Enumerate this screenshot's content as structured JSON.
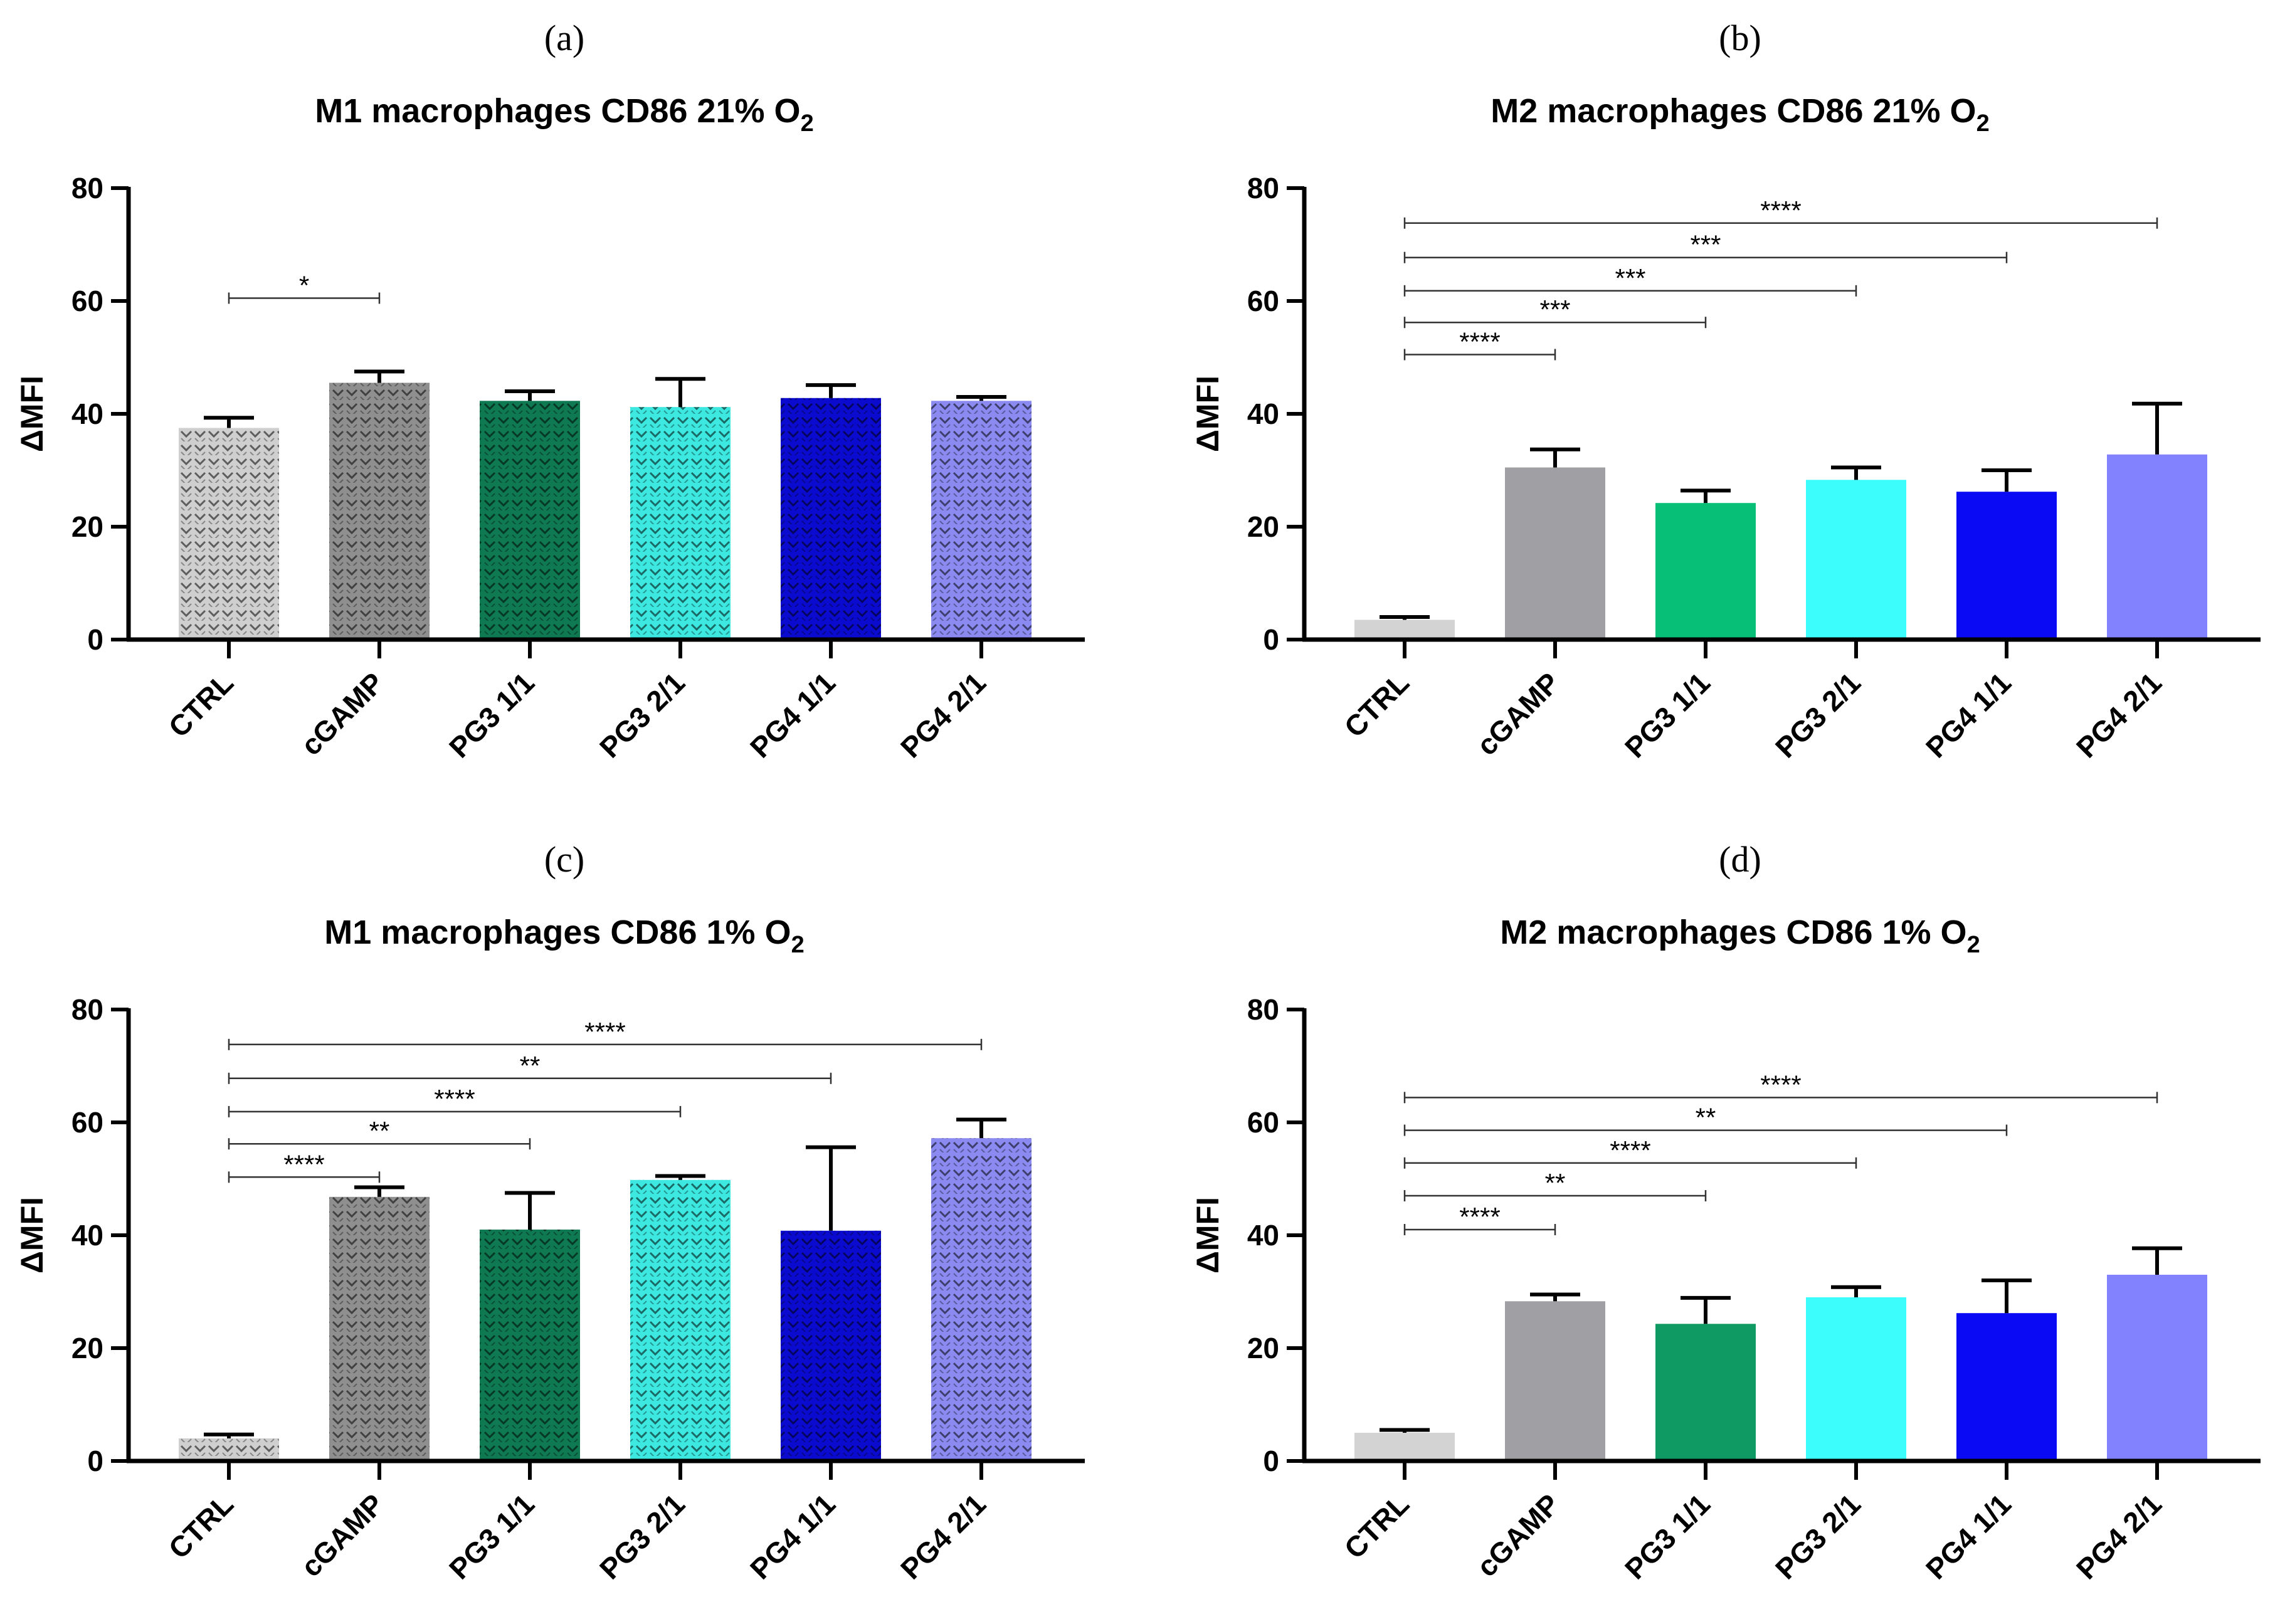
{
  "chart_data": [
    {
      "type": "bar",
      "panel_label": "(a)",
      "title_main": "M1 macrophages CD86 21% O",
      "title_sub": "2",
      "ylabel": "ΔMFI",
      "ylim": [
        0,
        80
      ],
      "yticks": [
        "0",
        "20",
        "40",
        "60",
        "80"
      ],
      "categories": [
        "CTRL",
        "cGAMP",
        "PG3 1/1",
        "PG3 2/1",
        "PG4 1/1",
        "PG4 2/1"
      ],
      "values": [
        37.5,
        45.5,
        42.3,
        41.2,
        42.8,
        42.3
      ],
      "errors": [
        1.8,
        2.0,
        1.7,
        5.0,
        2.3,
        0.7
      ],
      "colors": [
        "#cfcfcf",
        "#8f8f8f",
        "#0f7a52",
        "#3ce8e0",
        "#0b0bd0",
        "#8a8af0"
      ],
      "textured": true,
      "significance": [
        {
          "from": 0,
          "to": 1,
          "y": 60.5,
          "label": "*"
        }
      ]
    },
    {
      "type": "bar",
      "panel_label": "(b)",
      "title_main": "M2 macrophages CD86 21% O",
      "title_sub": "2",
      "ylabel": "ΔMFI",
      "ylim": [
        0,
        80
      ],
      "yticks": [
        "0",
        "20",
        "40",
        "60",
        "80"
      ],
      "categories": [
        "CTRL",
        "cGAMP",
        "PG3 1/1",
        "PG3 2/1",
        "PG4 1/1",
        "PG4 2/1"
      ],
      "values": [
        3.5,
        30.5,
        24.2,
        28.3,
        26.2,
        32.8
      ],
      "errors": [
        0.5,
        3.2,
        2.2,
        2.2,
        3.8,
        9.0
      ],
      "colors": [
        "#d3d3d3",
        "#a0a0a4",
        "#07bf76",
        "#3cfcfc",
        "#0a0af5",
        "#8282ff"
      ],
      "textured": false,
      "significance": [
        {
          "from": 0,
          "to": 1,
          "y": 50.5,
          "label": "****"
        },
        {
          "from": 0,
          "to": 2,
          "y": 56.2,
          "label": "***"
        },
        {
          "from": 0,
          "to": 3,
          "y": 61.8,
          "label": "***"
        },
        {
          "from": 0,
          "to": 4,
          "y": 67.7,
          "label": "***"
        },
        {
          "from": 0,
          "to": 5,
          "y": 73.8,
          "label": "****"
        }
      ]
    },
    {
      "type": "bar",
      "panel_label": "(c)",
      "title_main": "M1 macrophages CD86 1% O",
      "title_sub": "2",
      "ylabel": "ΔMFI",
      "ylim": [
        0,
        80
      ],
      "yticks": [
        "0",
        "20",
        "40",
        "60",
        "80"
      ],
      "categories": [
        "CTRL",
        "cGAMP",
        "PG3 1/1",
        "PG3 2/1",
        "PG4 1/1",
        "PG4 2/1"
      ],
      "values": [
        4.0,
        46.8,
        41.0,
        49.8,
        40.8,
        57.2
      ],
      "errors": [
        0.7,
        1.7,
        6.5,
        0.7,
        14.8,
        3.3
      ],
      "colors": [
        "#cfcfcf",
        "#8f8f8f",
        "#0f7a52",
        "#3ce8e0",
        "#0b0bd0",
        "#8a8af0"
      ],
      "textured": true,
      "significance": [
        {
          "from": 0,
          "to": 1,
          "y": 50.3,
          "label": "****"
        },
        {
          "from": 0,
          "to": 2,
          "y": 56.2,
          "label": "**"
        },
        {
          "from": 0,
          "to": 3,
          "y": 61.9,
          "label": "****"
        },
        {
          "from": 0,
          "to": 4,
          "y": 67.8,
          "label": "**"
        },
        {
          "from": 0,
          "to": 5,
          "y": 73.8,
          "label": "****"
        }
      ]
    },
    {
      "type": "bar",
      "panel_label": "(d)",
      "title_main": "M2 macrophages CD86 1% O",
      "title_sub": "2",
      "ylabel": "ΔMFI",
      "ylim": [
        0,
        80
      ],
      "yticks": [
        "0",
        "20",
        "40",
        "60",
        "80"
      ],
      "categories": [
        "CTRL",
        "cGAMP",
        "PG3 1/1",
        "PG3 2/1",
        "PG4 1/1",
        "PG4 2/1"
      ],
      "values": [
        5.0,
        28.3,
        24.3,
        29.0,
        26.2,
        33.0
      ],
      "errors": [
        0.5,
        1.2,
        4.6,
        1.8,
        5.8,
        4.7
      ],
      "colors": [
        "#d3d3d3",
        "#a0a0a4",
        "#0f9a64",
        "#3cfcfc",
        "#0a0af5",
        "#8282ff"
      ],
      "textured": false,
      "significance": [
        {
          "from": 0,
          "to": 1,
          "y": 41.0,
          "label": "****"
        },
        {
          "from": 0,
          "to": 2,
          "y": 47.0,
          "label": "**"
        },
        {
          "from": 0,
          "to": 3,
          "y": 52.8,
          "label": "****"
        },
        {
          "from": 0,
          "to": 4,
          "y": 58.6,
          "label": "**"
        },
        {
          "from": 0,
          "to": 5,
          "y": 64.4,
          "label": "****"
        }
      ]
    }
  ]
}
